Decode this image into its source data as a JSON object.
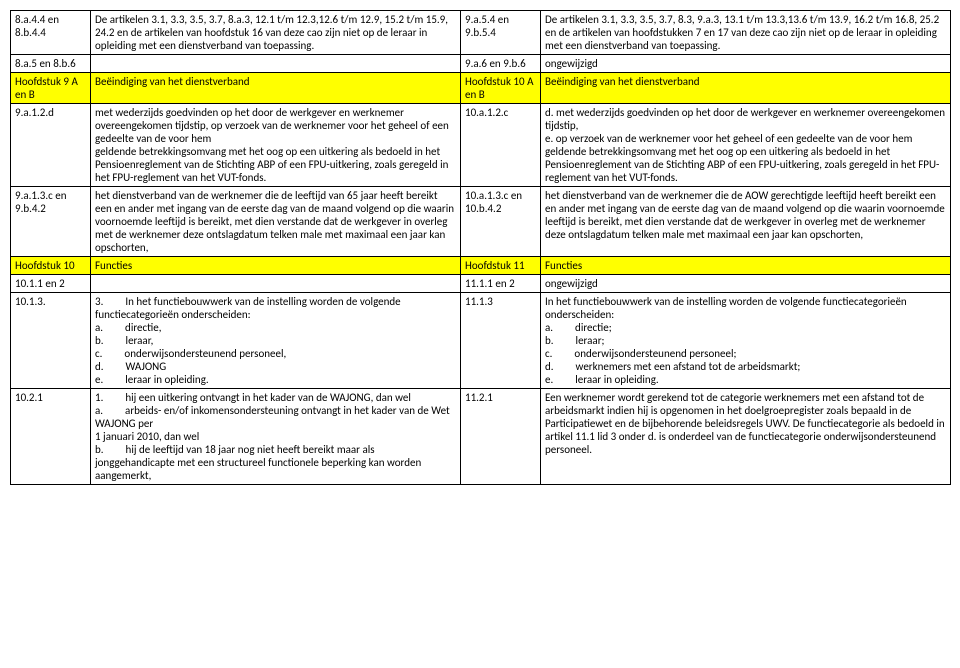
{
  "rows": [
    {
      "c1": "8.a.4.4 en 8.b.4.4",
      "c2": "De artikelen 3.1, 3.3, 3.5, 3.7, 8.a.3, 12.1 t/m 12.3,12.6 t/m 12.9, 15.2 t/m 15.9, 24.2 en de artikelen van hoofdstuk 16 van deze cao zijn niet op de leraar in opleiding met een dienstverband van toepassing.",
      "c3": "9.a.5.4 en 9.b.5.4",
      "c4": "De artikelen 3.1, 3.3, 3.5, 3.7, 8.3, 9.a.3, 13.1 t/m 13.3,13.6 t/m 13.9, 16.2 t/m 16.8, 25.2 en de artikelen van hoofdstukken 7 en 17 van deze cao zijn niet op de leraar in opleiding met een dienstverband van toepassing.",
      "hl": false
    },
    {
      "c1": "8.a.5 en 8.b.6",
      "c2": "",
      "c3": "9.a.6 en 9.b.6",
      "c4": "ongewijzigd",
      "hl": false
    },
    {
      "c1": "Hoofdstuk 9 A en B",
      "c2": "Beëindiging van het dienstverband",
      "c3": "Hoofdstuk 10 A en B",
      "c4": "Beëindiging van het dienstverband",
      "hl": true
    },
    {
      "c1": "9.a.1.2.d",
      "c2": "met wederzijds goedvinden op het door de werkgever en werknemer overeengekomen tijdstip, op verzoek van de werknemer voor het geheel of een gedeelte van de voor hem\ngeldende betrekkingsomvang met het oog op een uitkering als bedoeld in het Pensioenreglement van de Stichting ABP of een FPU-uitkering, zoals geregeld in het FPU-reglement van het VUT-fonds.",
      "c3": "10.a.1.2.c",
      "c4": "d. met wederzijds goedvinden op het door de werkgever en werknemer overeengekomen tijdstip,\ne. op verzoek van de werknemer voor het geheel of een gedeelte van de voor hem geldende betrekkingsomvang met het oog op een uitkering als bedoeld in het Pensioenreglement van de Stichting ABP of een FPU-uitkering, zoals geregeld in het FPU-reglement van het VUT-fonds.",
      "hl": false
    },
    {
      "c1": "9.a.1.3.c en 9.b.4.2",
      "c2": "het dienstverband van de werknemer die de leeftijd van 65 jaar heeft bereikt een en ander met ingang van de eerste dag van de maand volgend op die waarin voornoemde leeftijd is bereikt, met dien verstande dat de werkgever in overleg met de werknemer deze ontslagdatum telken male met maximaal een jaar kan opschorten,",
      "c3": "10.a.1.3.c en 10.b.4.2",
      "c4": "het dienstverband van de werknemer die de AOW gerechtigde leeftijd heeft bereikt een en ander met ingang van de eerste dag van de maand volgend op die waarin voornoemde leeftijd is bereikt, met dien verstande dat de werkgever in overleg met de werknemer deze ontslagdatum telken male met maximaal een jaar kan opschorten,",
      "hl": false
    },
    {
      "c1": "Hoofdstuk 10",
      "c2": "Functies",
      "c3": "Hoofdstuk 11",
      "c4": "Functies",
      "hl": true
    },
    {
      "c1": "10.1.1 en 2",
      "c2": "",
      "c3": "11.1.1 en 2",
      "c4": "ongewijzigd",
      "hl": false
    },
    {
      "c1": "10.1.3.",
      "c2": "3.  In het functiebouwwerk van de instelling worden de volgende functiecategorieën onderscheiden:\na.  directie,\nb.  leraar,\nc.  onderwijsondersteunend personeel,\nd.  WAJONG\ne.  leraar in opleiding.",
      "c3": "11.1.3",
      "c4": "In het functiebouwwerk van de instelling worden de volgende functiecategorieën onderscheiden:\na.  directie;\nb.  leraar;\nc.  onderwijsondersteunend personeel;\nd.  werknemers met een afstand tot de arbeidsmarkt;\ne.  leraar in opleiding.",
      "hl": false
    },
    {
      "c1": "10.2.1",
      "c2": "1.  hij een uitkering ontvangt in het kader van de WAJONG, dan wel\na.  arbeids- en/of inkomensondersteuning ontvangt in het kader van de Wet WAJONG per\n1 januari 2010, dan wel\nb.  hij de leeftijd van 18 jaar nog niet heeft bereikt maar als jonggehandicapte met een structureel functionele beperking kan worden aangemerkt,",
      "c3": "11.2.1",
      "c4": "Een werknemer wordt gerekend tot de categorie werknemers met een afstand tot de arbeidsmarkt indien hij is opgenomen in het doelgroepregister zoals bepaald in de Participatiewet en de bijbehorende beleidsregels UWV. De functiecategorie als bedoeld in artikel 11.1 lid 3 onder d. is onderdeel van de functiecategorie onderwijsondersteunend personeel.",
      "hl": false
    }
  ]
}
